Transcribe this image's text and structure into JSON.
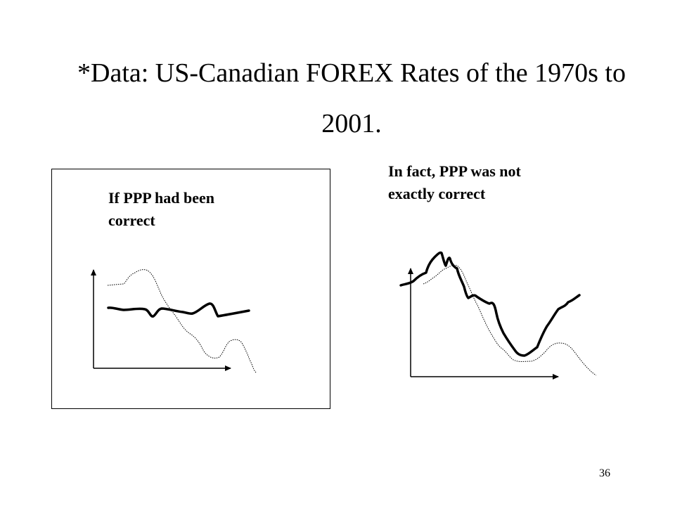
{
  "slide": {
    "title_line1": "*Data: US-Canadian FOREX Rates of the 1970s to",
    "title_line2": "2001.",
    "page_number": "36"
  },
  "left_panel": {
    "caption_line1": "If PPP had been",
    "caption_line2": "correct"
  },
  "right_panel": {
    "caption_line1": "In fact, PPP was not",
    "caption_line2": "exactly correct"
  },
  "colors": {
    "ink": "#000000",
    "background": "#ffffff"
  }
}
